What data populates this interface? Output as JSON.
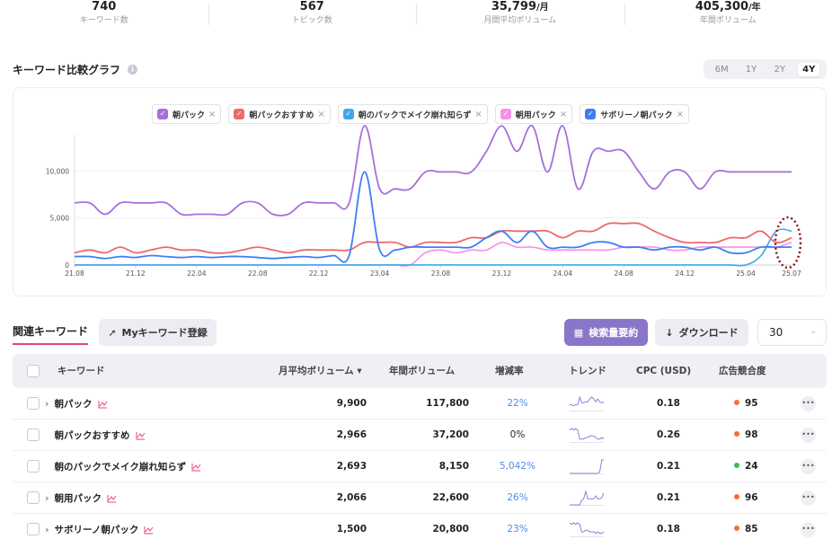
{
  "stats": [
    {
      "value": "740",
      "unit": "",
      "label": "キーワード数"
    },
    {
      "value": "567",
      "unit": "",
      "label": "トピック数"
    },
    {
      "value": "35,799",
      "unit": "/月",
      "label": "月間平均ボリューム"
    },
    {
      "value": "405,300",
      "unit": "/年",
      "label": "年間ボリューム"
    }
  ],
  "graph": {
    "title": "キーワード比較グラフ",
    "info": "i",
    "ranges": [
      "6M",
      "1Y",
      "2Y",
      "4Y"
    ],
    "active_range": "4Y"
  },
  "legend": [
    {
      "label": "朝パック",
      "color": "#a76fdc"
    },
    {
      "label": "朝パックおすすめ",
      "color": "#ec6a6a"
    },
    {
      "label": "朝のパックでメイク崩れ知らず",
      "color": "#3fa7e8"
    },
    {
      "label": "朝用パック",
      "color": "#f58fe8"
    },
    {
      "label": "サボリーノ朝パック",
      "color": "#3f7ef2"
    }
  ],
  "chart_data": {
    "type": "line",
    "x": [
      "21.08",
      "21.09",
      "21.10",
      "21.11",
      "21.12",
      "22.01",
      "22.02",
      "22.03",
      "22.04",
      "22.05",
      "22.06",
      "22.07",
      "22.08",
      "22.09",
      "22.10",
      "22.11",
      "22.12",
      "23.01",
      "23.02",
      "23.03",
      "23.04",
      "23.05",
      "23.06",
      "23.07",
      "23.08",
      "23.09",
      "23.10",
      "23.11",
      "23.12",
      "24.01",
      "24.02",
      "24.03",
      "24.04",
      "24.05",
      "24.06",
      "24.07",
      "24.08",
      "24.09",
      "24.10",
      "24.11",
      "24.12",
      "25.01",
      "25.02",
      "25.03",
      "25.04",
      "25.05",
      "25.06",
      "25.07"
    ],
    "xticks": [
      "21.08",
      "21.12",
      "22.04",
      "22.08",
      "22.12",
      "23.04",
      "23.08",
      "23.12",
      "24.04",
      "24.08",
      "24.12",
      "25.04",
      "25.07"
    ],
    "yticks": [
      "0",
      "5,000",
      "10,000"
    ],
    "ylim": [
      0,
      15000
    ],
    "grid": true,
    "series": [
      {
        "name": "朝パック",
        "color": "#a76fdc",
        "values": [
          6600,
          6600,
          5400,
          6600,
          6600,
          6600,
          6600,
          5400,
          5400,
          5400,
          5400,
          6600,
          6600,
          5400,
          5400,
          6600,
          6600,
          6600,
          6600,
          14800,
          8100,
          8100,
          8100,
          9900,
          9900,
          9900,
          9900,
          12100,
          14800,
          12100,
          14800,
          9900,
          14800,
          8100,
          12100,
          12100,
          12100,
          9900,
          8100,
          9900,
          9900,
          8100,
          9900,
          9900,
          9900,
          9900,
          9900,
          9900
        ]
      },
      {
        "name": "朝パックおすすめ",
        "color": "#ec6a6a",
        "values": [
          1300,
          1600,
          1300,
          1900,
          1300,
          1600,
          1900,
          1600,
          1600,
          1300,
          1300,
          1600,
          1900,
          1600,
          1300,
          1600,
          1600,
          1600,
          1600,
          2400,
          2400,
          2400,
          1900,
          2400,
          2400,
          2400,
          2900,
          2900,
          3600,
          3600,
          3600,
          3600,
          2900,
          3600,
          3600,
          4400,
          4400,
          4400,
          3600,
          2900,
          2400,
          2400,
          2400,
          2900,
          2900,
          3600,
          2400,
          2900
        ]
      },
      {
        "name": "朝のパックでメイク崩れ知らず",
        "color": "#3fa7e8",
        "values": [
          10,
          10,
          10,
          10,
          10,
          10,
          10,
          10,
          10,
          10,
          10,
          10,
          10,
          10,
          10,
          10,
          10,
          10,
          10,
          10,
          10,
          10,
          10,
          10,
          10,
          10,
          10,
          10,
          10,
          10,
          10,
          10,
          10,
          10,
          10,
          10,
          10,
          10,
          10,
          10,
          10,
          10,
          10,
          10,
          10,
          1000,
          3600,
          3600
        ]
      },
      {
        "name": "朝用パック",
        "color": "#f58fe8",
        "values": [
          0,
          0,
          0,
          0,
          0,
          0,
          0,
          0,
          0,
          0,
          0,
          0,
          0,
          0,
          0,
          0,
          0,
          0,
          0,
          0,
          0,
          0,
          0,
          1300,
          1600,
          1300,
          1600,
          1600,
          2400,
          1900,
          1900,
          1600,
          1600,
          1600,
          1600,
          1600,
          1900,
          1900,
          1900,
          1600,
          1600,
          1900,
          1900,
          1900,
          1900,
          1900,
          1900,
          2400
        ]
      },
      {
        "name": "サボリーノ朝パック",
        "color": "#3f7ef2",
        "values": [
          900,
          900,
          700,
          900,
          800,
          1000,
          900,
          800,
          900,
          800,
          900,
          900,
          800,
          700,
          800,
          900,
          800,
          1000,
          1000,
          9900,
          1600,
          1600,
          1900,
          1900,
          1900,
          1900,
          1900,
          2900,
          3600,
          2400,
          3600,
          1900,
          1900,
          1900,
          2400,
          2400,
          1900,
          1900,
          1600,
          1900,
          1900,
          1600,
          1900,
          1300,
          1300,
          1900,
          1900,
          1900
        ]
      }
    ]
  },
  "related": {
    "title": "関連キーワード",
    "my_button": "Myキーワード登録",
    "summary_button": "検索量要約",
    "download_button": "ダウンロード",
    "page_size": "30"
  },
  "table": {
    "headers": {
      "keyword": "キーワード",
      "monthly": "月平均ボリューム ▾",
      "yearly": "年間ボリューム",
      "rate": "増減率",
      "trend": "トレンド",
      "cpc": "CPC (USD)",
      "competition": "広告競合度"
    },
    "rows": [
      {
        "keyword": "朝パック",
        "expandable": true,
        "monthly": "9,900",
        "yearly": "117,800",
        "rate": "22%",
        "rate_color": "blue",
        "cpc": "0.18",
        "competition": "95",
        "comp_color": "#f0703a",
        "trend": [
          6,
          6,
          5,
          6,
          6,
          14,
          8,
          8,
          9,
          9,
          12,
          14,
          12,
          9,
          12,
          9,
          8,
          9
        ]
      },
      {
        "keyword": "朝パックおすすめ",
        "expandable": false,
        "monthly": "2,966",
        "yearly": "37,200",
        "rate": "0%",
        "rate_color": "neutral",
        "cpc": "0.26",
        "competition": "98",
        "comp_color": "#f0703a",
        "trend": [
          8,
          9,
          8,
          9,
          8,
          2,
          2,
          2,
          3,
          3,
          4,
          4,
          4,
          3,
          2,
          2,
          3,
          2
        ]
      },
      {
        "keyword": "朝のパックでメイク崩れ知らず",
        "expandable": false,
        "monthly": "2,693",
        "yearly": "8,150",
        "rate": "5,042%",
        "rate_color": "blue",
        "cpc": "0.21",
        "competition": "24",
        "comp_color": "#3dba5a",
        "trend": [
          0,
          0,
          0,
          0,
          0,
          0,
          0,
          0,
          0,
          0,
          0,
          0,
          0,
          0,
          0,
          1,
          9,
          9
        ]
      },
      {
        "keyword": "朝用パック",
        "expandable": true,
        "monthly": "2,066",
        "yearly": "22,600",
        "rate": "26%",
        "rate_color": "blue",
        "cpc": "0.21",
        "competition": "96",
        "comp_color": "#f0703a",
        "trend": [
          0,
          0,
          0,
          0,
          0,
          0,
          3,
          4,
          9,
          4,
          4,
          4,
          4,
          6,
          4,
          4,
          5,
          8
        ]
      },
      {
        "keyword": "サボリーノ朝パック",
        "expandable": true,
        "monthly": "1,500",
        "yearly": "20,800",
        "rate": "23%",
        "rate_color": "blue",
        "cpc": "0.18",
        "competition": "85",
        "comp_color": "#f0703a",
        "trend": [
          9,
          8,
          9,
          8,
          9,
          8,
          3,
          3,
          4,
          4,
          3,
          3,
          3,
          2,
          3,
          2,
          2,
          3
        ]
      }
    ]
  }
}
